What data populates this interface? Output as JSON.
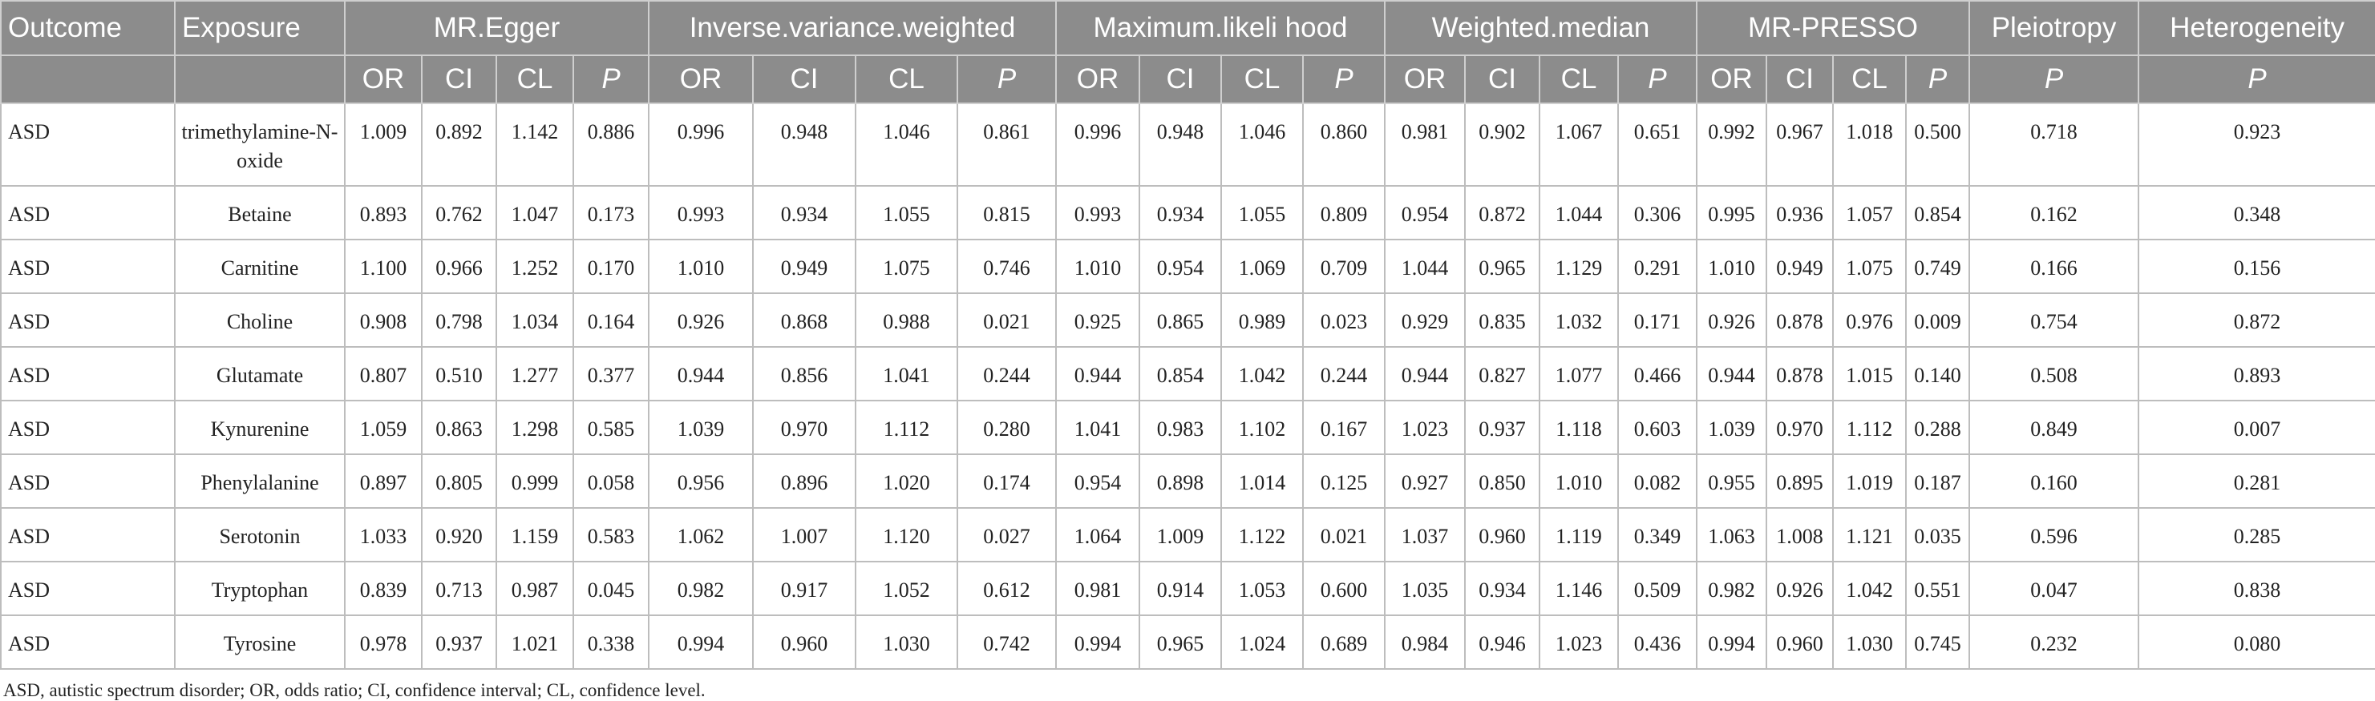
{
  "header": {
    "outcome": "Outcome",
    "exposure": "Exposure",
    "groups": [
      {
        "title": "MR.Egger",
        "subs": [
          "OR",
          "CI",
          "CL",
          "P"
        ]
      },
      {
        "title": "Inverse.variance.weighted",
        "subs": [
          "OR",
          "CI",
          "CL",
          "P"
        ]
      },
      {
        "title": "Maximum.likeli hood",
        "subs": [
          "OR",
          "CI",
          "CL",
          "P"
        ]
      },
      {
        "title": "Weighted.median",
        "subs": [
          "OR",
          "CI",
          "CL",
          "P"
        ]
      },
      {
        "title": "MR-PRESSO",
        "subs": [
          "OR",
          "CI",
          "CL",
          "P"
        ]
      },
      {
        "title": "Pleiotropy",
        "subs": [
          "P"
        ]
      },
      {
        "title": "Heterogeneity",
        "subs": [
          "P"
        ]
      }
    ]
  },
  "table": {
    "rows": [
      [
        "ASD",
        "trimethylamine-N-oxide",
        "1.009",
        "0.892",
        "1.142",
        "0.886",
        "0.996",
        "0.948",
        "1.046",
        "0.861",
        "0.996",
        "0.948",
        "1.046",
        "0.860",
        "0.981",
        "0.902",
        "1.067",
        "0.651",
        "0.992",
        "0.967",
        "1.018",
        "0.500",
        "0.718",
        "0.923"
      ],
      [
        "ASD",
        "Betaine",
        "0.893",
        "0.762",
        "1.047",
        "0.173",
        "0.993",
        "0.934",
        "1.055",
        "0.815",
        "0.993",
        "0.934",
        "1.055",
        "0.809",
        "0.954",
        "0.872",
        "1.044",
        "0.306",
        "0.995",
        "0.936",
        "1.057",
        "0.854",
        "0.162",
        "0.348"
      ],
      [
        "ASD",
        "Carnitine",
        "1.100",
        "0.966",
        "1.252",
        "0.170",
        "1.010",
        "0.949",
        "1.075",
        "0.746",
        "1.010",
        "0.954",
        "1.069",
        "0.709",
        "1.044",
        "0.965",
        "1.129",
        "0.291",
        "1.010",
        "0.949",
        "1.075",
        "0.749",
        "0.166",
        "0.156"
      ],
      [
        "ASD",
        "Choline",
        "0.908",
        "0.798",
        "1.034",
        "0.164",
        "0.926",
        "0.868",
        "0.988",
        "0.021",
        "0.925",
        "0.865",
        "0.989",
        "0.023",
        "0.929",
        "0.835",
        "1.032",
        "0.171",
        "0.926",
        "0.878",
        "0.976",
        "0.009",
        "0.754",
        "0.872"
      ],
      [
        "ASD",
        "Glutamate",
        "0.807",
        "0.510",
        "1.277",
        "0.377",
        "0.944",
        "0.856",
        "1.041",
        "0.244",
        "0.944",
        "0.854",
        "1.042",
        "0.244",
        "0.944",
        "0.827",
        "1.077",
        "0.466",
        "0.944",
        "0.878",
        "1.015",
        "0.140",
        "0.508",
        "0.893"
      ],
      [
        "ASD",
        "Kynurenine",
        "1.059",
        "0.863",
        "1.298",
        "0.585",
        "1.039",
        "0.970",
        "1.112",
        "0.280",
        "1.041",
        "0.983",
        "1.102",
        "0.167",
        "1.023",
        "0.937",
        "1.118",
        "0.603",
        "1.039",
        "0.970",
        "1.112",
        "0.288",
        "0.849",
        "0.007"
      ],
      [
        "ASD",
        "Phenylalanine",
        "0.897",
        "0.805",
        "0.999",
        "0.058",
        "0.956",
        "0.896",
        "1.020",
        "0.174",
        "0.954",
        "0.898",
        "1.014",
        "0.125",
        "0.927",
        "0.850",
        "1.010",
        "0.082",
        "0.955",
        "0.895",
        "1.019",
        "0.187",
        "0.160",
        "0.281"
      ],
      [
        "ASD",
        "Serotonin",
        "1.033",
        "0.920",
        "1.159",
        "0.583",
        "1.062",
        "1.007",
        "1.120",
        "0.027",
        "1.064",
        "1.009",
        "1.122",
        "0.021",
        "1.037",
        "0.960",
        "1.119",
        "0.349",
        "1.063",
        "1.008",
        "1.121",
        "0.035",
        "0.596",
        "0.285"
      ],
      [
        "ASD",
        "Tryptophan",
        "0.839",
        "0.713",
        "0.987",
        "0.045",
        "0.982",
        "0.917",
        "1.052",
        "0.612",
        "0.981",
        "0.914",
        "1.053",
        "0.600",
        "1.035",
        "0.934",
        "1.146",
        "0.509",
        "0.982",
        "0.926",
        "1.042",
        "0.551",
        "0.047",
        "0.838"
      ],
      [
        "ASD",
        "Tyrosine",
        "0.978",
        "0.937",
        "1.021",
        "0.338",
        "0.994",
        "0.960",
        "1.030",
        "0.742",
        "0.994",
        "0.965",
        "1.024",
        "0.689",
        "0.984",
        "0.946",
        "1.023",
        "0.436",
        "0.994",
        "0.960",
        "1.030",
        "0.745",
        "0.232",
        "0.080"
      ]
    ]
  },
  "footnote": "ASD, autistic spectrum disorder; OR, odds ratio; CI, confidence interval; CL, confidence level."
}
